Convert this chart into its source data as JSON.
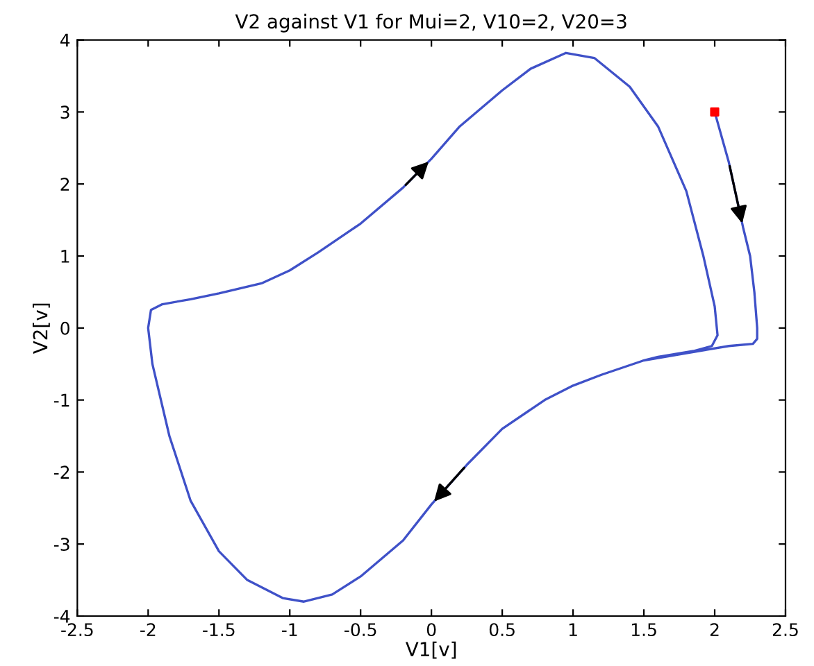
{
  "chart_data": {
    "type": "line",
    "title": "V2 against V1 for Mui=2, V10=2, V20=3",
    "xlabel": "V1[v]",
    "ylabel": "V2[v]",
    "xlim": [
      -2.5,
      2.5
    ],
    "xticks": [
      -2.5,
      -2,
      -1.5,
      -1,
      -0.5,
      0,
      0.5,
      1,
      1.5,
      2,
      2.5
    ],
    "ylim": [
      -4,
      4
    ],
    "yticks": [
      -4,
      -3,
      -2,
      -1,
      0,
      1,
      2,
      3,
      4
    ],
    "grid": false,
    "legend": false,
    "series": [
      {
        "color": "#3f51c8",
        "x": [
          2,
          2.1,
          2.2,
          2.25,
          2.28,
          2.3,
          2.3,
          2.27,
          2.1,
          1.95,
          1.8,
          1.5,
          1.2,
          1.0,
          0.8,
          0.5,
          0.25,
          0,
          -0.2,
          -0.5,
          -0.7,
          -0.9,
          -1.05,
          -1.3,
          -1.5,
          -1.7,
          -1.85,
          -1.97,
          -2.0,
          -1.98,
          -1.9,
          -1.7,
          -1.5,
          -1.2,
          -1.0,
          -0.8,
          -0.5,
          -0.2,
          0,
          0.2,
          0.5,
          0.7,
          0.95,
          1.15,
          1.4,
          1.6,
          1.8,
          1.92,
          2.0,
          2.02,
          1.98,
          1.85,
          1.6,
          1.5
        ],
        "values": [
          3,
          2.3,
          1.4,
          1.0,
          0.5,
          0,
          -0.15,
          -0.22,
          -0.25,
          -0.3,
          -0.35,
          -0.45,
          -0.65,
          -0.8,
          -1.0,
          -1.4,
          -1.9,
          -2.45,
          -2.95,
          -3.45,
          -3.7,
          -3.8,
          -3.75,
          -3.5,
          -3.1,
          -2.4,
          -1.5,
          -0.5,
          0.0,
          0.25,
          0.33,
          0.4,
          0.48,
          0.62,
          0.8,
          1.05,
          1.45,
          1.95,
          2.35,
          2.8,
          3.3,
          3.6,
          3.82,
          3.75,
          3.35,
          2.8,
          1.9,
          1.0,
          0.3,
          -0.1,
          -0.25,
          -0.32,
          -0.4,
          -0.45
        ]
      },
      {
        "type": "scatter",
        "color": "#ff0000",
        "marker": "square",
        "x": [
          2
        ],
        "values": [
          3
        ]
      }
    ]
  }
}
